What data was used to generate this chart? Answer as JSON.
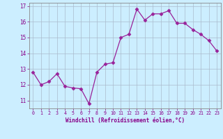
{
  "x": [
    0,
    1,
    2,
    3,
    4,
    5,
    6,
    7,
    8,
    9,
    10,
    11,
    12,
    13,
    14,
    15,
    16,
    17,
    18,
    19,
    20,
    21,
    22,
    23
  ],
  "y": [
    12.8,
    12.0,
    12.2,
    12.7,
    11.9,
    11.8,
    11.75,
    10.8,
    12.8,
    13.3,
    13.4,
    15.0,
    15.2,
    16.8,
    16.1,
    16.5,
    16.5,
    16.7,
    15.9,
    15.9,
    15.5,
    15.2,
    14.8,
    14.15
  ],
  "xlabel": "Windchill (Refroidissement éolien,°C)",
  "xlim": [
    -0.5,
    23.5
  ],
  "ylim": [
    10.5,
    17.2
  ],
  "yticks": [
    11,
    12,
    13,
    14,
    15,
    16,
    17
  ],
  "xticks": [
    0,
    1,
    2,
    3,
    4,
    5,
    6,
    7,
    8,
    9,
    10,
    11,
    12,
    13,
    14,
    15,
    16,
    17,
    18,
    19,
    20,
    21,
    22,
    23
  ],
  "line_color": "#992299",
  "marker_color": "#992299",
  "bg_color": "#cceeff",
  "grid_color": "#aabbcc",
  "spine_color": "#888888",
  "tick_label_color": "#880088",
  "xlabel_color": "#880088"
}
